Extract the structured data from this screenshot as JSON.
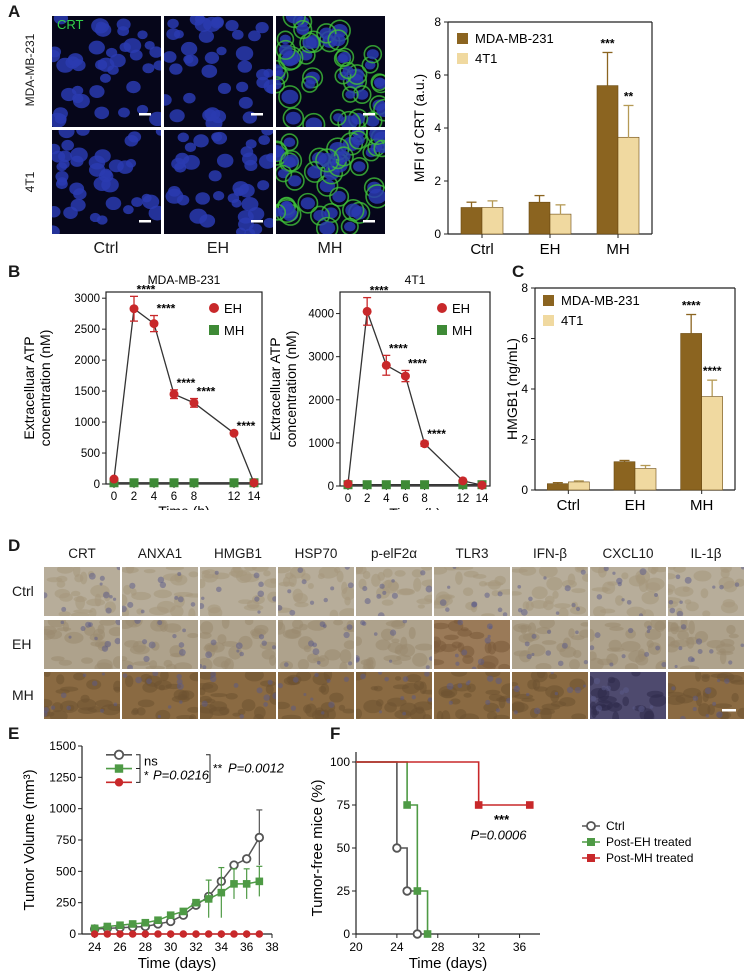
{
  "panel_letters": [
    "A",
    "B",
    "C",
    "D",
    "E",
    "F"
  ],
  "panelA": {
    "stain_label": "CRT",
    "rows": [
      "MDA-MB-231",
      "4T1"
    ],
    "cols": [
      "Ctrl",
      "EH",
      "MH"
    ]
  },
  "panelD": {
    "markers": [
      "CRT",
      "ANXA1",
      "HMGB1",
      "HSP70",
      "p-elF2α",
      "TLR3",
      "IFN-β",
      "CXCL10",
      "IL-1β"
    ],
    "rows": [
      "Ctrl",
      "EH",
      "MH"
    ]
  },
  "chart_data": [
    {
      "id": "A",
      "type": "bar",
      "ylabel": "MFI of CRT (a.u.)",
      "categories": [
        "Ctrl",
        "EH",
        "MH"
      ],
      "ylim": [
        0,
        8
      ],
      "yticks": [
        0,
        2,
        4,
        6,
        8
      ],
      "legend_position": "top-left",
      "series": [
        {
          "name": "MDA-MB-231",
          "color": "#8B6420",
          "values": [
            1.0,
            1.2,
            5.6
          ],
          "errors": [
            0.2,
            0.25,
            1.25
          ],
          "sig": [
            "",
            "",
            "***"
          ]
        },
        {
          "name": "4T1",
          "color": "#F0D9A0",
          "values": [
            1.0,
            0.75,
            3.65
          ],
          "errors": [
            0.25,
            0.35,
            1.2
          ],
          "sig": [
            "",
            "",
            "**"
          ]
        }
      ]
    },
    {
      "id": "B1",
      "type": "line",
      "title": "MDA-MB-231",
      "xlabel": "Time (h)",
      "ylabel": "Extracelluar ATP concentration (nM)",
      "xticks": [
        0,
        2,
        4,
        6,
        8,
        12,
        14
      ],
      "yticks": [
        0,
        500,
        1000,
        1500,
        2000,
        2500,
        3000
      ],
      "ylim": [
        0,
        3100
      ],
      "legend_position": "top-right",
      "series": [
        {
          "name": "EH",
          "color": "#C8282A",
          "marker": "circle",
          "x": [
            0,
            2,
            4,
            6,
            8,
            12,
            14
          ],
          "y": [
            80,
            2830,
            2590,
            1450,
            1310,
            820,
            20
          ],
          "errors": [
            0,
            200,
            130,
            70,
            70,
            0,
            0
          ],
          "sig": [
            "",
            "****",
            "****",
            "****",
            "****",
            "****",
            ""
          ]
        },
        {
          "name": "MH",
          "color": "#3E8A36",
          "marker": "square",
          "x": [
            0,
            2,
            4,
            6,
            8,
            12,
            14
          ],
          "y": [
            20,
            20,
            20,
            20,
            20,
            20,
            20
          ],
          "errors": [
            0,
            0,
            0,
            0,
            0,
            0,
            0
          ],
          "sig": [
            "",
            "",
            "",
            "",
            "",
            "",
            ""
          ]
        }
      ]
    },
    {
      "id": "B2",
      "type": "line",
      "title": "4T1",
      "xlabel": "Time (h)",
      "ylabel": "Extracelluar ATP concentration (nM)",
      "xticks": [
        0,
        2,
        4,
        6,
        8,
        12,
        14
      ],
      "yticks": [
        0,
        1000,
        2000,
        3000,
        4000
      ],
      "ylim": [
        0,
        4500
      ],
      "legend_position": "top-right",
      "series": [
        {
          "name": "EH",
          "color": "#C8282A",
          "marker": "circle",
          "x": [
            0,
            2,
            4,
            6,
            8,
            12,
            14
          ],
          "y": [
            50,
            4050,
            2800,
            2550,
            980,
            120,
            20
          ],
          "errors": [
            0,
            320,
            230,
            130,
            60,
            0,
            0
          ],
          "sig": [
            "",
            "****",
            "****",
            "****",
            "****",
            "",
            ""
          ]
        },
        {
          "name": "MH",
          "color": "#3E8A36",
          "marker": "square",
          "x": [
            0,
            2,
            4,
            6,
            8,
            12,
            14
          ],
          "y": [
            30,
            30,
            30,
            30,
            30,
            30,
            30
          ],
          "errors": [
            0,
            0,
            0,
            0,
            0,
            0,
            0
          ],
          "sig": [
            "",
            "",
            "",
            "",
            "",
            "",
            ""
          ]
        }
      ]
    },
    {
      "id": "C",
      "type": "bar",
      "ylabel": "HMGB1 (ng/mL)",
      "categories": [
        "Ctrl",
        "EH",
        "MH"
      ],
      "ylim": [
        0,
        8
      ],
      "yticks": [
        0,
        2,
        4,
        6,
        8
      ],
      "legend_position": "top-left",
      "series": [
        {
          "name": "MDA-MB-231",
          "color": "#8B6420",
          "values": [
            0.25,
            1.12,
            6.2
          ],
          "errors": [
            0.04,
            0.05,
            0.75
          ],
          "sig": [
            "",
            "",
            "****"
          ]
        },
        {
          "name": "4T1",
          "color": "#F0D9A0",
          "values": [
            0.32,
            0.85,
            3.7
          ],
          "errors": [
            0.04,
            0.12,
            0.65
          ],
          "sig": [
            "",
            "",
            "****"
          ]
        }
      ]
    },
    {
      "id": "E",
      "type": "line",
      "xlabel": "Time (days)",
      "ylabel": "Tumor Volume (mm³)",
      "xticks": [
        24,
        26,
        28,
        30,
        32,
        34,
        36,
        38
      ],
      "yticks": [
        0,
        250,
        500,
        750,
        1000,
        1250,
        1500
      ],
      "xlim": [
        23,
        38
      ],
      "ylim": [
        0,
        1500
      ],
      "annotations": [
        "ns",
        "P=0.0216",
        "P=0.0012"
      ],
      "annotation_stars": [
        "*",
        "**"
      ],
      "series": [
        {
          "color": "#555555",
          "marker": "circle-open",
          "x": [
            24,
            25,
            26,
            27,
            28,
            29,
            30,
            31,
            32,
            33,
            34,
            35,
            36,
            37
          ],
          "y": [
            40,
            45,
            50,
            55,
            60,
            80,
            100,
            150,
            230,
            300,
            420,
            550,
            600,
            770
          ],
          "errors": [
            0,
            0,
            0,
            0,
            0,
            0,
            0,
            0,
            0,
            0,
            0,
            0,
            0,
            220
          ]
        },
        {
          "color": "#4E9A45",
          "marker": "square",
          "x": [
            24,
            25,
            26,
            27,
            28,
            29,
            30,
            31,
            32,
            33,
            34,
            35,
            36,
            37
          ],
          "y": [
            45,
            60,
            70,
            80,
            90,
            110,
            150,
            180,
            250,
            280,
            330,
            400,
            400,
            420
          ],
          "errors": [
            0,
            0,
            0,
            0,
            0,
            0,
            0,
            0,
            0,
            150,
            200,
            120,
            120,
            120
          ]
        },
        {
          "color": "#C8282A",
          "marker": "circle",
          "x": [
            24,
            25,
            26,
            27,
            28,
            29,
            30,
            31,
            32,
            33,
            34,
            35,
            36,
            37
          ],
          "y": [
            0,
            0,
            0,
            0,
            0,
            0,
            0,
            0,
            0,
            0,
            0,
            0,
            0,
            0
          ],
          "errors": [
            0,
            0,
            0,
            0,
            0,
            0,
            0,
            0,
            0,
            0,
            0,
            0,
            0,
            0
          ]
        }
      ]
    },
    {
      "id": "F",
      "type": "line",
      "xlabel": "Time (days)",
      "ylabel": "Tumor-free mice (%)",
      "xticks": [
        20,
        24,
        28,
        32,
        36
      ],
      "yticks": [
        0,
        25,
        50,
        75,
        100
      ],
      "xlim": [
        20,
        38
      ],
      "ylim": [
        0,
        100
      ],
      "annotation_stars": "***",
      "annotation_p": "P=0.0006",
      "legend_position": "right",
      "series": [
        {
          "name": "Ctrl",
          "color": "#555555",
          "marker": "circle-open",
          "steps": [
            [
              20,
              100
            ],
            [
              24,
              100
            ],
            [
              24,
              50
            ],
            [
              25,
              50
            ],
            [
              25,
              25
            ],
            [
              26,
              25
            ],
            [
              26,
              0
            ],
            [
              26.2,
              0
            ]
          ],
          "marks": [
            [
              24,
              50
            ],
            [
              25,
              25
            ],
            [
              26,
              0
            ]
          ]
        },
        {
          "name": "Post-EH treated",
          "color": "#4E9A45",
          "marker": "square",
          "steps": [
            [
              20,
              100
            ],
            [
              25,
              100
            ],
            [
              25,
              75
            ],
            [
              26,
              75
            ],
            [
              26,
              25
            ],
            [
              27,
              25
            ],
            [
              27,
              0
            ],
            [
              27.2,
              0
            ]
          ],
          "marks": [
            [
              25,
              75
            ],
            [
              26,
              25
            ],
            [
              27,
              0
            ]
          ]
        },
        {
          "name": "Post-MH treated",
          "color": "#C8282A",
          "marker": "square",
          "steps": [
            [
              20,
              100
            ],
            [
              32,
              100
            ],
            [
              32,
              75
            ],
            [
              37,
              75
            ]
          ],
          "marks": [
            [
              32,
              75
            ],
            [
              37,
              75
            ]
          ]
        }
      ]
    }
  ]
}
